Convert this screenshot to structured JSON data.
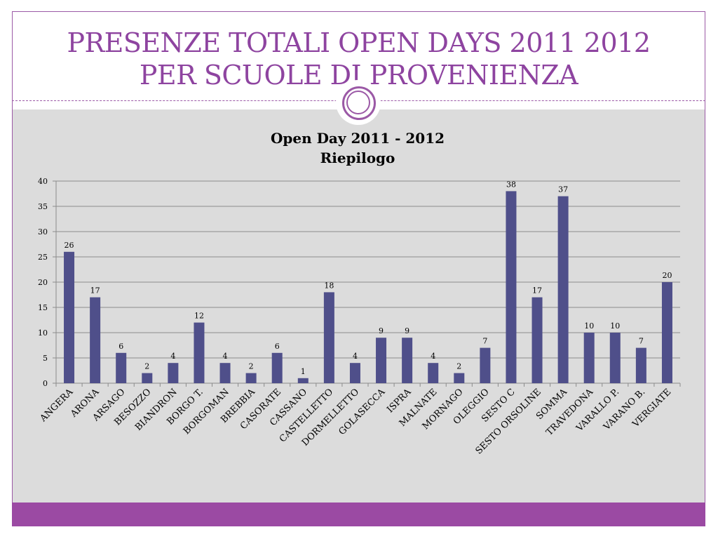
{
  "slide": {
    "title_line1": "PRESENZE TOTALI OPEN DAYS 2011 2012",
    "title_line2": "PER SCUOLE DI PROVENIENZA"
  },
  "colors": {
    "accent": "#9b59a6",
    "title": "#8e44a0",
    "bar": "#4f4f8a",
    "background": "#dcdcdc",
    "bottom_bar": "#9b4aa3"
  },
  "chart_data": {
    "type": "bar",
    "title_line1": "Open Day 2011 - 2012",
    "title_line2": "Riepilogo",
    "xlabel": "",
    "ylabel": "",
    "ylim": [
      0,
      40
    ],
    "yticks": [
      0,
      5,
      10,
      15,
      20,
      25,
      30,
      35,
      40
    ],
    "grid": true,
    "legend": "none",
    "categories": [
      "ANGERA",
      "ARONA",
      "ARSAGO",
      "BESOZZO",
      "BIANDRON",
      "BORGO T.",
      "BORGOMAN",
      "BREBBIA",
      "CASORATE",
      "CASSANO",
      "CASTELLETTO",
      "DORMELLETTO",
      "GOLASECCA",
      "ISPRA",
      "MALNATE",
      "MORNAGO",
      "OLEGGIO",
      "SESTO C",
      "SESTO ORSOLINE",
      "SOMMA",
      "TRAVEDONA",
      "VARALLO P.",
      "VARANO B.",
      "VERGIATE"
    ],
    "values": [
      26,
      17,
      6,
      2,
      4,
      12,
      4,
      2,
      6,
      1,
      18,
      4,
      9,
      9,
      4,
      2,
      7,
      38,
      17,
      37,
      10,
      10,
      7,
      20
    ]
  }
}
